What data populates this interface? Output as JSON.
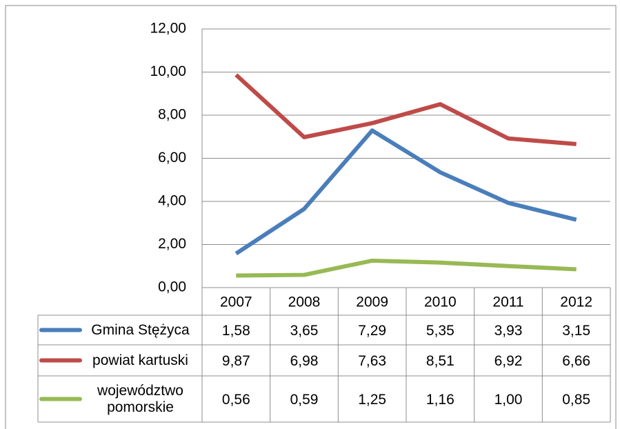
{
  "chart_data": {
    "type": "line",
    "categories": [
      "2007",
      "2008",
      "2009",
      "2010",
      "2011",
      "2012"
    ],
    "series": [
      {
        "name": "Gmina Stężyca",
        "color": "#4a7ebb",
        "values": [
          1.58,
          3.65,
          7.29,
          5.35,
          3.93,
          3.15
        ],
        "value_labels": [
          "1,58",
          "3,65",
          "7,29",
          "5,35",
          "3,93",
          "3,15"
        ]
      },
      {
        "name": "powiat kartuski",
        "color": "#be4b48",
        "values": [
          9.87,
          6.98,
          7.63,
          8.51,
          6.92,
          6.66
        ],
        "value_labels": [
          "9,87",
          "6,98",
          "7,63",
          "8,51",
          "6,92",
          "6,66"
        ]
      },
      {
        "name": "województwo pomorskie",
        "color": "#98b954",
        "values": [
          0.56,
          0.59,
          1.25,
          1.16,
          1.0,
          0.85
        ],
        "value_labels": [
          "0,56",
          "0,59",
          "1,25",
          "1,16",
          "1,00",
          "0,85"
        ]
      }
    ],
    "ylim": [
      0,
      12
    ],
    "yticks": [
      {
        "value": 0,
        "label": "0,00"
      },
      {
        "value": 2,
        "label": "2,00"
      },
      {
        "value": 4,
        "label": "4,00"
      },
      {
        "value": 6,
        "label": "6,00"
      },
      {
        "value": 8,
        "label": "8,00"
      },
      {
        "value": 10,
        "label": "10,00"
      },
      {
        "value": 12,
        "label": "12,00"
      }
    ],
    "grid": true
  }
}
